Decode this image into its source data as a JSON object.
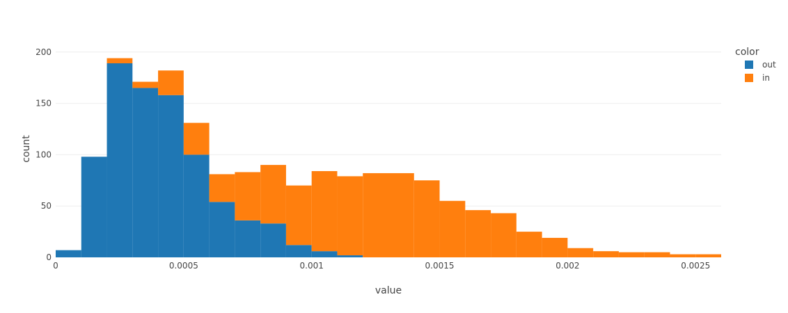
{
  "chart_data": {
    "type": "bar",
    "barmode": "stack",
    "bin_width": 0.0001,
    "bin_starts": [
      0,
      0.0001,
      0.0002,
      0.0003,
      0.0004,
      0.0005,
      0.0006,
      0.0007,
      0.0008,
      0.0009,
      0.001,
      0.0011,
      0.0012,
      0.0013,
      0.0014,
      0.0015,
      0.0016,
      0.0017,
      0.0018,
      0.0019,
      0.002,
      0.0021,
      0.0022,
      0.0023,
      0.0024,
      0.0025
    ],
    "series": [
      {
        "name": "out",
        "color": "#1f77b4",
        "values": [
          7,
          98,
          189,
          165,
          158,
          100,
          54,
          36,
          33,
          12,
          6,
          2,
          0,
          0,
          0,
          0,
          0,
          0,
          0,
          0,
          0,
          0,
          0,
          0,
          0,
          0
        ]
      },
      {
        "name": "in",
        "color": "#ff7f0e",
        "values": [
          0,
          0,
          5,
          6,
          24,
          31,
          27,
          47,
          57,
          58,
          78,
          77,
          82,
          82,
          75,
          55,
          46,
          43,
          25,
          19,
          9,
          6,
          5,
          5,
          3,
          3
        ]
      }
    ],
    "xlabel": "value",
    "ylabel": "count",
    "xlim": [
      0,
      0.0026
    ],
    "ylim": [
      0,
      210
    ],
    "xticks": [
      0,
      0.0005,
      0.001,
      0.0015,
      0.002,
      0.0025
    ],
    "xtick_labels": [
      "0",
      "0.0005",
      "0.001",
      "0.0015",
      "0.002",
      "0.0025"
    ],
    "yticks": [
      0,
      50,
      100,
      150,
      200
    ],
    "ytick_labels": [
      "0",
      "50",
      "100",
      "150",
      "200"
    ],
    "grid": true,
    "legend_title": "color",
    "legend_position": "top-right"
  }
}
